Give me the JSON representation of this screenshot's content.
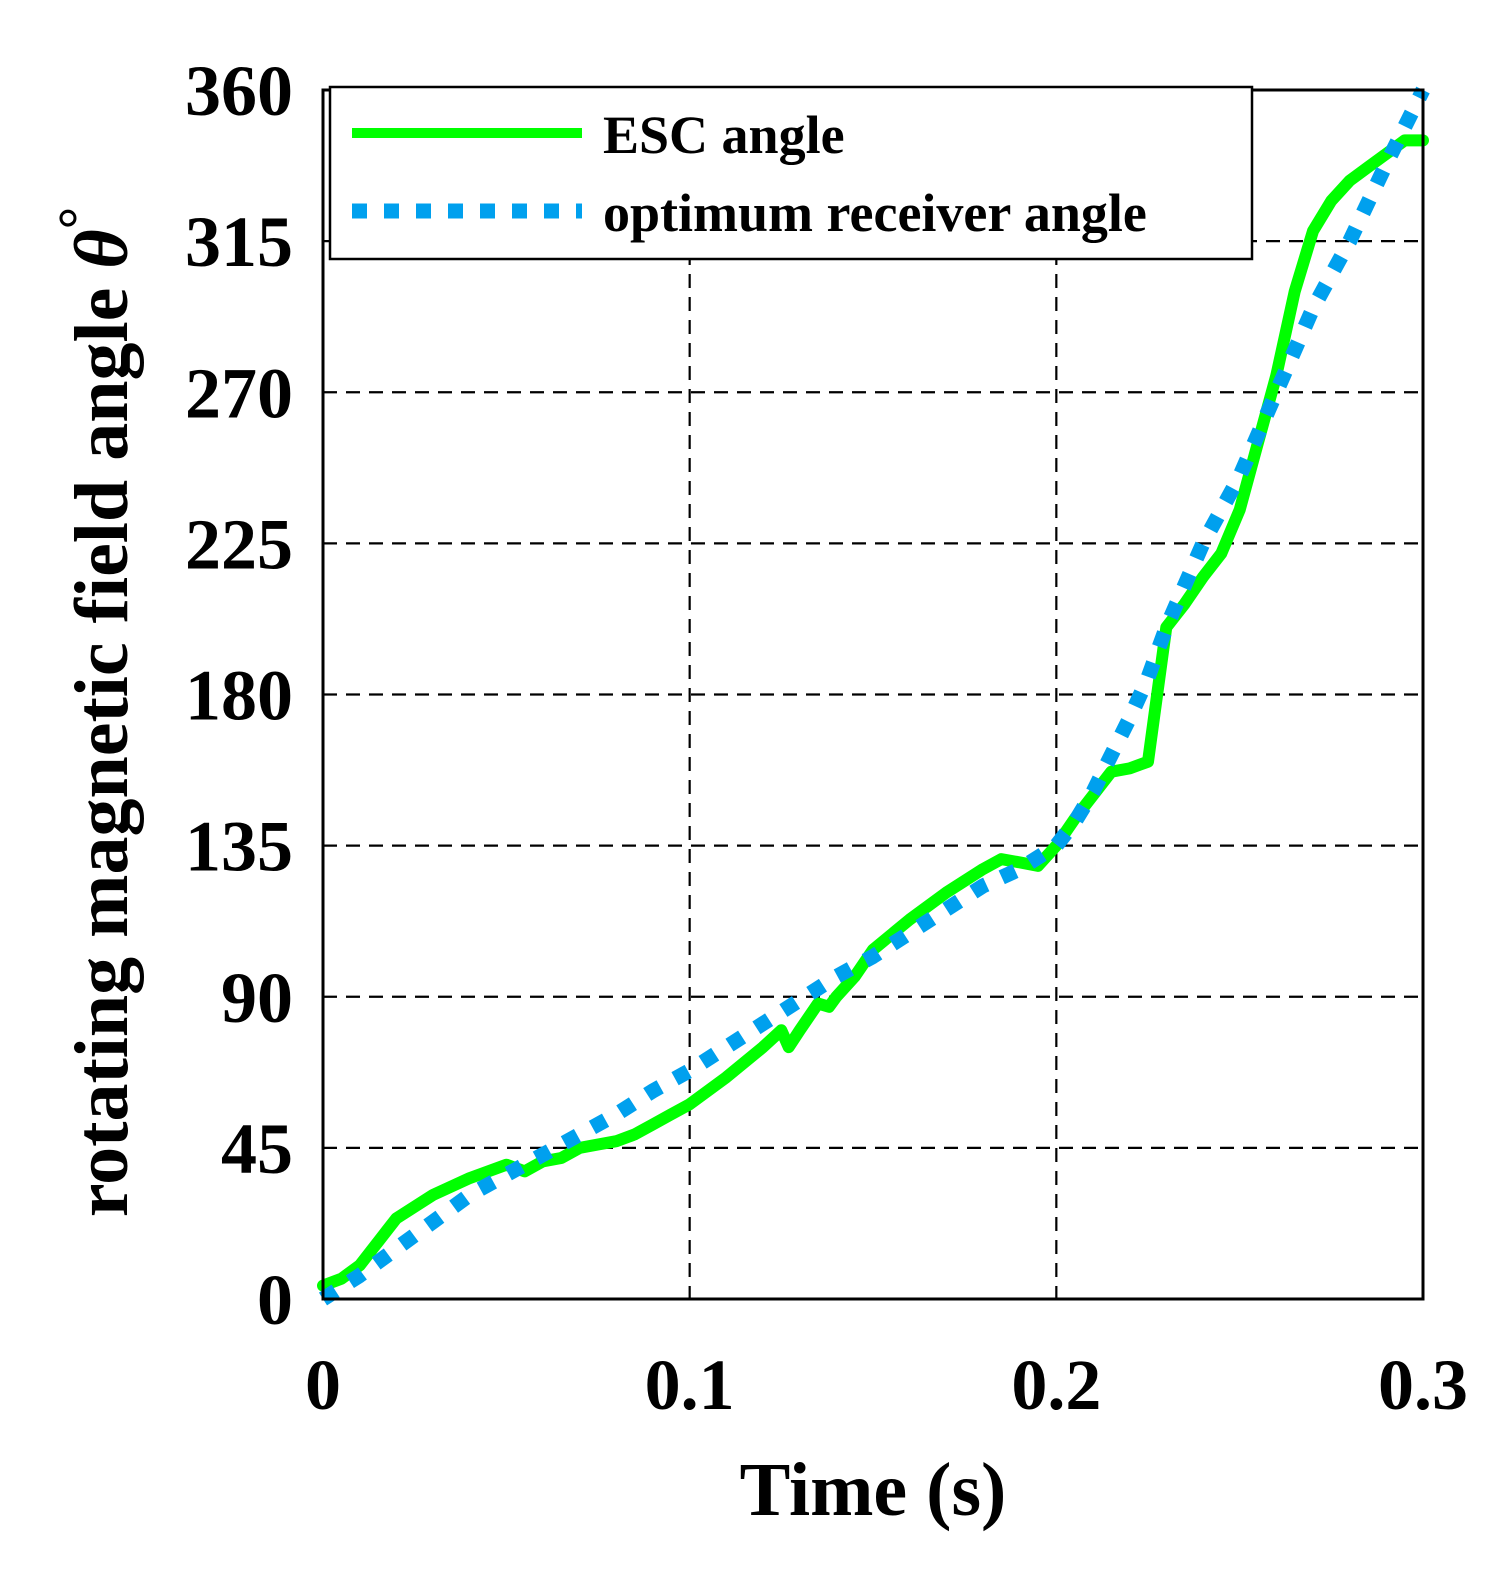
{
  "chart_data": {
    "type": "line",
    "title": "",
    "xlabel": "Time (s)",
    "ylabel": "rotating magnetic field angle θ°",
    "ylabel_main": "rotating magnetic field angle ",
    "ylabel_theta": "θ",
    "ylabel_degree": "°",
    "xlim": [
      0,
      0.3
    ],
    "ylim": [
      0,
      360
    ],
    "xticks": [
      0,
      0.1,
      0.2,
      0.3
    ],
    "xtick_labels": [
      "0",
      "0.1",
      "0.2",
      "0.3"
    ],
    "yticks": [
      0,
      45,
      90,
      135,
      180,
      225,
      270,
      315,
      360
    ],
    "ytick_labels": [
      "0",
      "45",
      "90",
      "135",
      "180",
      "225",
      "270",
      "315",
      "360"
    ],
    "grid": true,
    "legend_position": "top-left",
    "series": [
      {
        "name": "ESC angle",
        "color": "#00ff00",
        "style": "solid",
        "x": [
          0,
          0.005,
          0.01,
          0.015,
          0.02,
          0.03,
          0.04,
          0.05,
          0.055,
          0.06,
          0.065,
          0.07,
          0.075,
          0.08,
          0.085,
          0.09,
          0.095,
          0.1,
          0.11,
          0.12,
          0.125,
          0.127,
          0.13,
          0.135,
          0.138,
          0.14,
          0.145,
          0.15,
          0.16,
          0.17,
          0.18,
          0.185,
          0.19,
          0.195,
          0.2,
          0.205,
          0.21,
          0.215,
          0.22,
          0.225,
          0.23,
          0.235,
          0.24,
          0.245,
          0.25,
          0.255,
          0.26,
          0.265,
          0.27,
          0.275,
          0.28,
          0.285,
          0.29,
          0.295,
          0.3
        ],
        "values": [
          4,
          6,
          10,
          17,
          24,
          31,
          36,
          40,
          38,
          41,
          42,
          45,
          46,
          47,
          49,
          52,
          55,
          58,
          66,
          75,
          80,
          75,
          80,
          88,
          87,
          90,
          96,
          104,
          113,
          121,
          128,
          131,
          130,
          129,
          135,
          143,
          150,
          157,
          158,
          160,
          200,
          207,
          215,
          222,
          235,
          255,
          275,
          300,
          318,
          327,
          333,
          337,
          341,
          345,
          345
        ]
      },
      {
        "name": "optimum receiver angle",
        "color": "#00a0ee",
        "style": "dotted",
        "x": [
          0,
          0.01,
          0.02,
          0.03,
          0.04,
          0.05,
          0.06,
          0.07,
          0.08,
          0.09,
          0.1,
          0.11,
          0.12,
          0.13,
          0.14,
          0.15,
          0.16,
          0.17,
          0.18,
          0.19,
          0.2,
          0.205,
          0.21,
          0.215,
          0.22,
          0.225,
          0.23,
          0.24,
          0.25,
          0.26,
          0.27,
          0.28,
          0.29,
          0.3
        ],
        "values": [
          0,
          7,
          15,
          23,
          31,
          37,
          43,
          49,
          55,
          62,
          68,
          75,
          82,
          89,
          96,
          102,
          109,
          116,
          123,
          128,
          135,
          142,
          151,
          162,
          173,
          185,
          200,
          225,
          245,
          270,
          295,
          315,
          338,
          360
        ]
      }
    ]
  }
}
